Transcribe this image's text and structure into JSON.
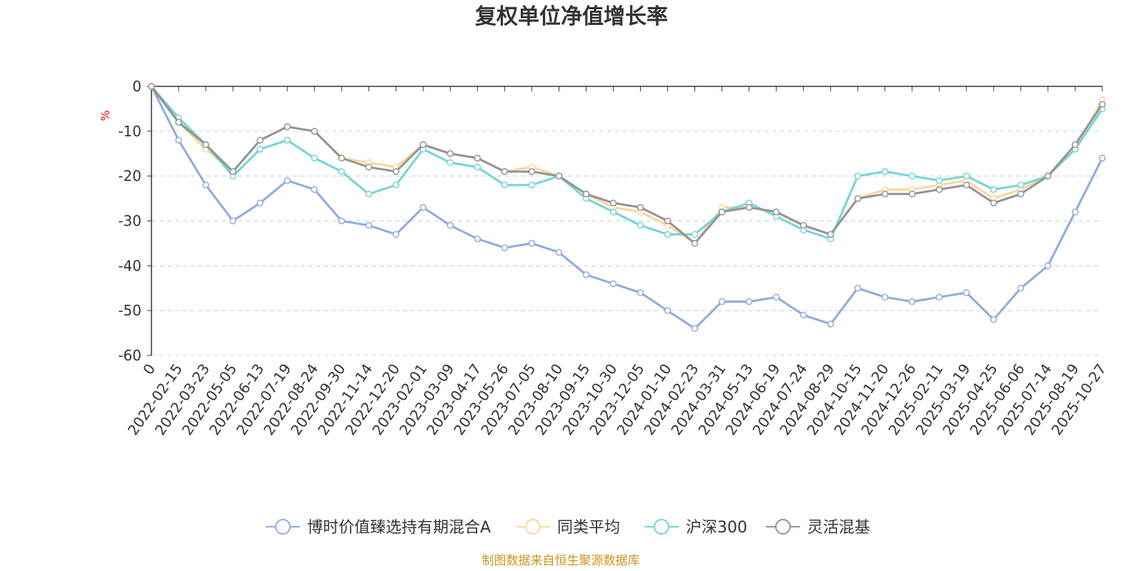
{
  "chart_data": {
    "type": "line",
    "title": "复权单位净值增长率",
    "ylabel": "%",
    "ylim": [
      -60,
      0
    ],
    "yticks": [
      0,
      -10,
      -20,
      -30,
      -40,
      -50,
      -60
    ],
    "grid": true,
    "legend_position": "bottom",
    "source_note": "制图数据来自恒生聚源数据库",
    "categories": [
      "0",
      "2022-02-15",
      "2022-03-23",
      "2022-05-05",
      "2022-06-13",
      "2022-07-19",
      "2022-08-24",
      "2022-09-30",
      "2022-11-14",
      "2022-12-20",
      "2023-02-01",
      "2023-03-09",
      "2023-04-17",
      "2023-05-26",
      "2023-07-05",
      "2023-08-10",
      "2023-09-15",
      "2023-10-30",
      "2023-12-05",
      "2024-01-10",
      "2024-02-23",
      "2024-03-31",
      "2024-05-13",
      "2024-06-19",
      "2024-07-24",
      "2024-08-29",
      "2024-10-15",
      "2024-11-20",
      "2024-12-26",
      "2025-02-11",
      "2025-03-19",
      "2025-04-25",
      "2025-06-06",
      "2025-07-14",
      "2025-08-19",
      "2025-10-27"
    ],
    "series": [
      {
        "name": "博时价值臻选持有期混合A",
        "color": "#8eabdc",
        "values": [
          0,
          -12,
          -22,
          -30,
          -26,
          -21,
          -23,
          -30,
          -31,
          -33,
          -27,
          -31,
          -34,
          -36,
          -35,
          -37,
          -42,
          -44,
          -46,
          -50,
          -54,
          -48,
          -48,
          -47,
          -51,
          -53,
          -45,
          -47,
          -48,
          -47,
          -46,
          -52,
          -45,
          -40,
          -28,
          -16
        ]
      },
      {
        "name": "同类平均",
        "color": "#f9d699",
        "values": [
          0,
          -8,
          -14,
          -19,
          -12,
          -9,
          -10,
          -16,
          -17,
          -18,
          -13,
          -15,
          -16,
          -19,
          -18,
          -20,
          -24,
          -27,
          -28,
          -31,
          -35,
          -27,
          -27,
          -28,
          -31,
          -33,
          -25,
          -23,
          -23,
          -22,
          -21,
          -25,
          -23,
          -20,
          -14,
          -3
        ]
      },
      {
        "name": "沪深300",
        "color": "#74d4d8",
        "values": [
          0,
          -7,
          -13,
          -20,
          -14,
          -12,
          -16,
          -19,
          -24,
          -22,
          -14,
          -17,
          -18,
          -22,
          -22,
          -20,
          -25,
          -28,
          -31,
          -33,
          -33,
          -28,
          -26,
          -29,
          -32,
          -34,
          -20,
          -19,
          -20,
          -21,
          -20,
          -23,
          -22,
          -20,
          -14,
          -5
        ]
      },
      {
        "name": "灵活混基",
        "color": "#939393",
        "values": [
          0,
          -8,
          -13,
          -19,
          -12,
          -9,
          -10,
          -16,
          -18,
          -19,
          -13,
          -15,
          -16,
          -19,
          -19,
          -20,
          -24,
          -26,
          -27,
          -30,
          -35,
          -28,
          -27,
          -28,
          -31,
          -33,
          -25,
          -24,
          -24,
          -23,
          -22,
          -26,
          -24,
          -20,
          -13,
          -4
        ]
      }
    ]
  }
}
